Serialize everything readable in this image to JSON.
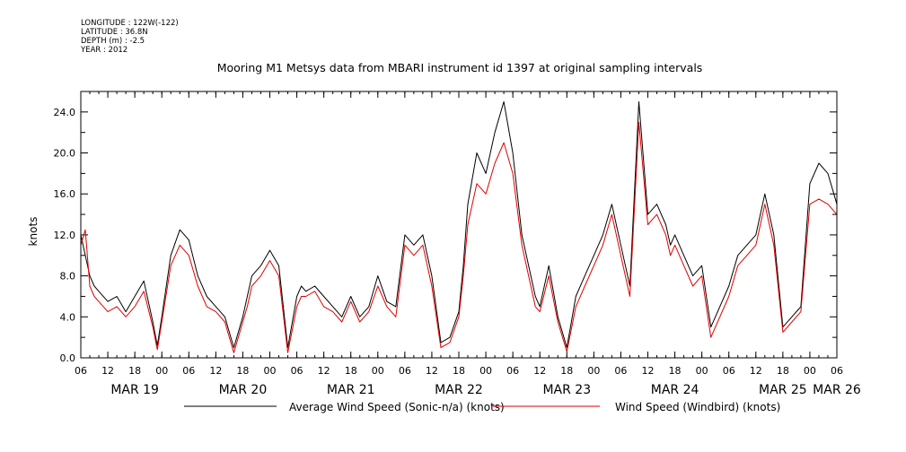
{
  "metadata": {
    "longitude": "LONGITUDE : 122W(-122)",
    "latitude": "LATITUDE : 36.8N",
    "depth": "DEPTH (m) : -2.5",
    "year": "YEAR : 2012"
  },
  "chart_data": {
    "type": "line",
    "title": "Mooring M1 Metsys data from MBARI instrument id 1397 at original sampling intervals",
    "xlabel": "",
    "ylabel": "knots",
    "ylim": [
      0,
      26
    ],
    "yticks": [
      0.0,
      4.0,
      8.0,
      12.0,
      16.0,
      20.0,
      24.0
    ],
    "ytick_labels": [
      "0.0",
      "4.0",
      "8.0",
      "12.0",
      "16.0",
      "20.0",
      "24.0"
    ],
    "x_unit": "hours from 2012-03-19 06:00",
    "xlim": [
      0,
      168
    ],
    "hour_ticks": [
      0,
      6,
      12,
      18,
      24,
      30,
      36,
      42,
      48,
      54,
      60,
      66,
      72,
      78,
      84,
      90,
      96,
      102,
      108,
      114,
      120,
      126,
      132,
      138,
      144,
      150,
      156,
      162,
      168
    ],
    "hour_tick_labels": [
      "06",
      "12",
      "18",
      "00",
      "06",
      "12",
      "18",
      "00",
      "06",
      "12",
      "18",
      "00",
      "06",
      "12",
      "18",
      "00",
      "06",
      "12",
      "18",
      "00",
      "06",
      "12",
      "18",
      "00",
      "06",
      "12",
      "18",
      "00",
      "06"
    ],
    "date_labels": [
      {
        "label": "MAR 19",
        "x": 12
      },
      {
        "label": "MAR 20",
        "x": 36
      },
      {
        "label": "MAR 21",
        "x": 60
      },
      {
        "label": "MAR 22",
        "x": 84
      },
      {
        "label": "MAR 23",
        "x": 108
      },
      {
        "label": "MAR 24",
        "x": 132
      },
      {
        "label": "MAR 25",
        "x": 156
      },
      {
        "label": "MAR 26",
        "x": 168
      }
    ],
    "grid": false,
    "legend_position": "bottom",
    "series": [
      {
        "name": "Average Wind Speed (Sonic-n/a) (knots)",
        "color": "#000000",
        "x": [
          0,
          1,
          2,
          3,
          4,
          6,
          8,
          10,
          12,
          14,
          16,
          17,
          18,
          20,
          22,
          24,
          26,
          28,
          30,
          32,
          34,
          36,
          37,
          38,
          40,
          42,
          44,
          46,
          48,
          49,
          50,
          52,
          54,
          56,
          58,
          60,
          62,
          64,
          66,
          68,
          70,
          72,
          74,
          76,
          78,
          80,
          82,
          84,
          85,
          86,
          88,
          90,
          92,
          94,
          96,
          98,
          100,
          101,
          102,
          104,
          106,
          108,
          110,
          112,
          114,
          116,
          118,
          120,
          122,
          124,
          126,
          128,
          130,
          131,
          132,
          134,
          136,
          138,
          140,
          142,
          144,
          146,
          148,
          150,
          152,
          154,
          156,
          158,
          160,
          162,
          164,
          166,
          168
        ],
        "y": [
          12,
          10,
          8,
          7,
          6.5,
          5.5,
          6,
          4.5,
          6,
          7.5,
          3.5,
          1.2,
          4,
          10,
          12.5,
          11.5,
          8,
          6,
          5,
          4,
          1,
          4,
          6,
          8,
          9,
          10.5,
          9,
          1,
          6,
          7,
          6.5,
          7,
          6,
          5,
          4,
          6,
          4,
          5,
          8,
          5.5,
          5,
          12,
          11,
          12,
          8,
          1.5,
          2,
          4.5,
          9,
          15,
          20,
          18,
          22,
          25,
          20,
          12,
          8,
          6,
          5,
          9,
          4,
          1,
          6,
          8,
          10,
          12,
          15,
          11,
          7,
          25,
          14,
          15,
          13,
          11,
          12,
          10,
          8,
          9,
          3,
          5,
          7,
          10,
          11,
          12,
          16,
          12,
          3,
          4,
          5,
          17,
          19,
          18,
          15
        ]
      },
      {
        "name": "Wind Speed (Windbird) (knots)",
        "color": "#e00000",
        "x": [
          0,
          1,
          2,
          3,
          4,
          6,
          8,
          10,
          12,
          14,
          16,
          17,
          18,
          20,
          22,
          24,
          26,
          28,
          30,
          32,
          34,
          36,
          37,
          38,
          40,
          42,
          44,
          46,
          48,
          49,
          50,
          52,
          54,
          56,
          58,
          60,
          62,
          64,
          66,
          68,
          70,
          72,
          74,
          76,
          78,
          80,
          82,
          84,
          85,
          86,
          88,
          90,
          92,
          94,
          96,
          98,
          100,
          101,
          102,
          104,
          106,
          108,
          110,
          112,
          114,
          116,
          118,
          120,
          122,
          124,
          126,
          128,
          130,
          131,
          132,
          134,
          136,
          138,
          140,
          142,
          144,
          146,
          148,
          150,
          152,
          154,
          156,
          158,
          160,
          162,
          164,
          166,
          168
        ],
        "y": [
          11,
          12.5,
          7,
          6,
          5.5,
          4.5,
          5,
          4,
          5,
          6.5,
          3,
          0.8,
          3.5,
          9,
          11,
          10,
          7,
          5,
          4.5,
          3.5,
          0.5,
          3.5,
          5,
          7,
          8,
          9.5,
          8,
          0.5,
          5,
          6,
          6,
          6.5,
          5,
          4.5,
          3.5,
          5.5,
          3.5,
          4.5,
          7,
          5,
          4,
          11,
          10,
          11,
          7,
          1,
          1.5,
          4,
          8,
          13,
          17,
          16,
          19,
          21,
          18,
          11,
          7,
          5,
          4.5,
          8,
          3.5,
          0.6,
          5,
          7,
          9,
          11,
          14,
          10,
          6,
          23,
          13,
          14,
          12,
          10,
          11,
          9,
          7,
          8,
          2,
          4,
          6,
          9,
          10,
          11,
          15,
          11,
          2.5,
          3.5,
          4.5,
          15,
          15.5,
          15,
          14
        ]
      }
    ]
  }
}
